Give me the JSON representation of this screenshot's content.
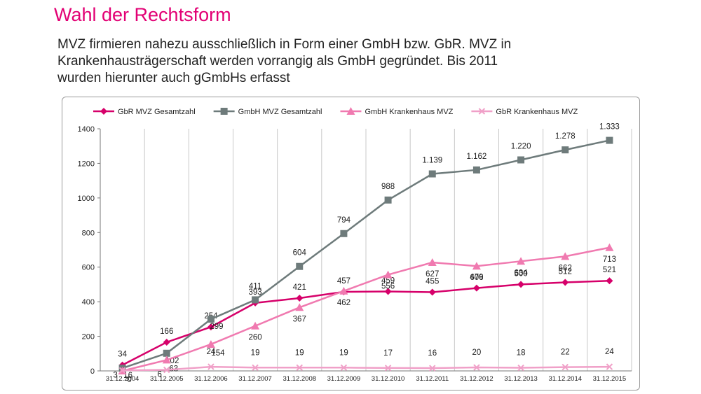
{
  "slide": {
    "title": "Wahl der Rechtsform",
    "text_lines": [
      "MVZ firmieren nahezu ausschließlich in Form einer GmbH bzw. GbR. MVZ in",
      "Krankenhausträgerschaft werden vorrangig als GmbH gegründet. Bis 2011",
      "wurden hierunter auch gGmbHs erfasst"
    ]
  },
  "chart_data": {
    "type": "line",
    "title": "",
    "xlabel": "",
    "ylabel": "",
    "ylim": [
      0,
      1400
    ],
    "yticks": [
      0,
      200,
      400,
      600,
      800,
      1000,
      1200,
      1400
    ],
    "grid": "vertical",
    "legend_position": "top",
    "categories": [
      "31.12.2004",
      "31.12.2005",
      "31.12.2006",
      "31.12.2007",
      "31.12.2008",
      "31.12.2009",
      "31.12.2010",
      "31.12.2011",
      "31.12.2012",
      "31.12.2013",
      "31.12.2014",
      "31.12.2015"
    ],
    "series": [
      {
        "name": "GbR MVZ Gesamtzahl",
        "color": "#d6006a",
        "marker": "diamond",
        "values": [
          34,
          166,
          254,
          393,
          421,
          457,
          459,
          455,
          479,
          500,
          512,
          521
        ],
        "labels": [
          "34",
          "166",
          "254",
          "393",
          "421",
          "457",
          "459",
          "455",
          "479",
          "500",
          "512",
          "521"
        ]
      },
      {
        "name": "GmbH MVZ Gesamtzahl",
        "color": "#6e7b7b",
        "marker": "square",
        "values": [
          16,
          102,
          299,
          411,
          604,
          794,
          988,
          1139,
          1162,
          1220,
          1278,
          1333
        ],
        "labels": [
          "16",
          "102",
          "299",
          "411",
          "604",
          "794",
          "988",
          "1.139",
          "1.162",
          "1.220",
          "1.278",
          "1.333"
        ]
      },
      {
        "name": "GmbH Krankenhaus MVZ",
        "color": "#f07ab0",
        "marker": "triangle",
        "values": [
          0,
          63,
          154,
          260,
          367,
          462,
          556,
          627,
          606,
          634,
          662,
          713
        ],
        "labels": [
          "0",
          "63",
          "154",
          "260",
          "367",
          "462",
          "556",
          "627",
          "606",
          "634",
          "662",
          "713"
        ]
      },
      {
        "name": "GbR Krankenhaus MVZ",
        "color": "#f0a0c8",
        "marker": "x",
        "values": [
          3,
          6,
          24,
          19,
          19,
          19,
          17,
          16,
          20,
          18,
          22,
          24
        ],
        "labels": [
          "3",
          "6",
          "24",
          "19",
          "19",
          "19",
          "17",
          "16",
          "20",
          "18",
          "22",
          "24"
        ]
      }
    ]
  }
}
